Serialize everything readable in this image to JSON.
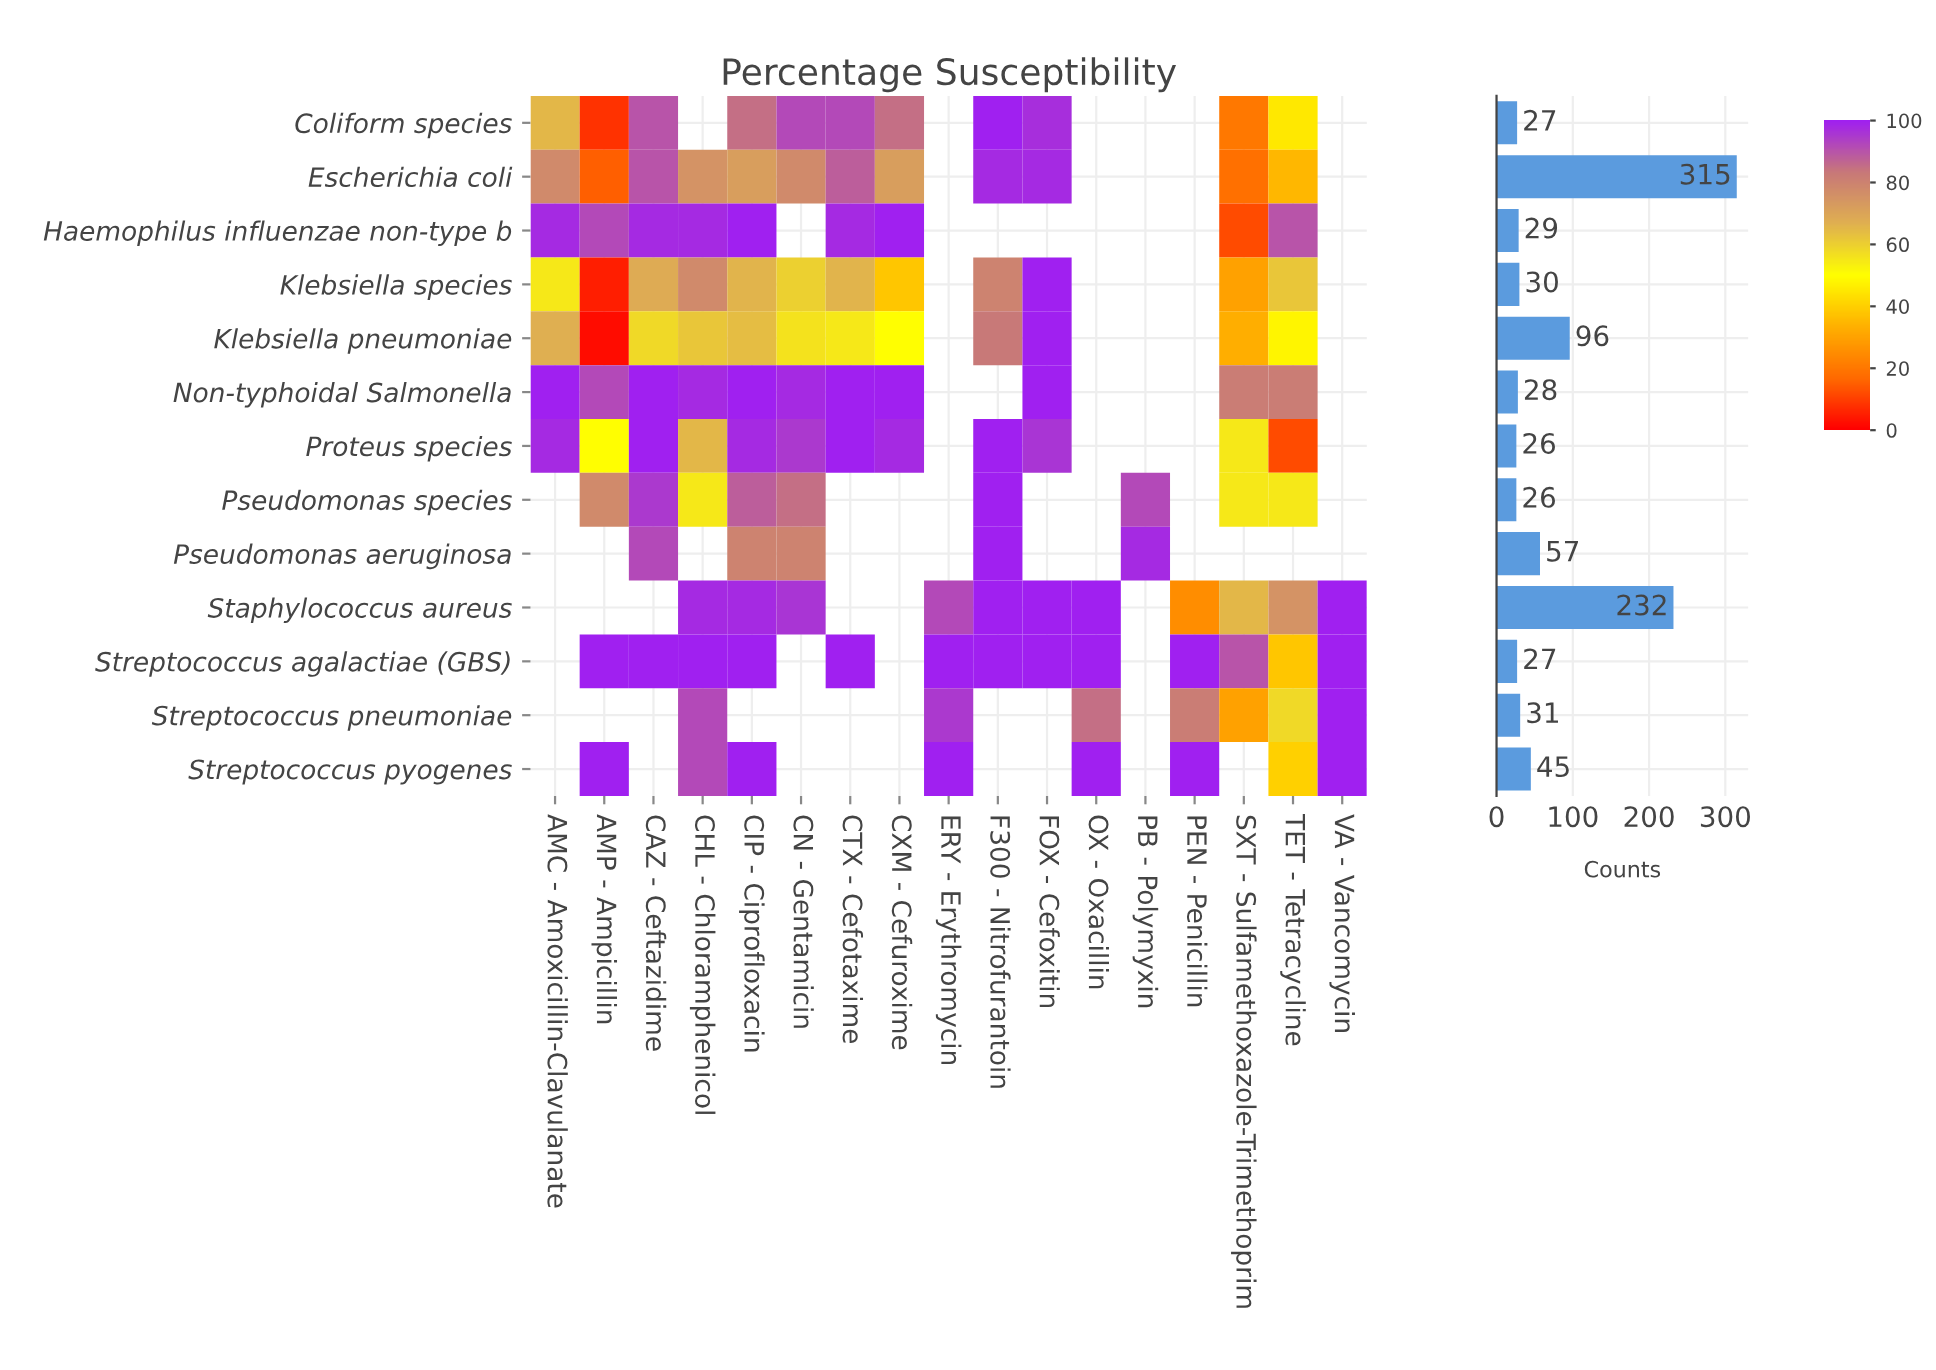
{
  "chart_data": [
    {
      "type": "heatmap",
      "title": "Percentage Susceptibility",
      "categories": [
        "AMC - Amoxicillin-Clavulanate",
        "AMP - Ampicillin",
        "CAZ - Ceftazidime",
        "CHL - Chloramphenicol",
        "CIP - Ciprofloxacin",
        "CN - Gentamicin",
        "CTX - Cefotaxime",
        "CXM - Cefuroxime",
        "ERY - Erythromycin",
        "F300 - Nitrofurantoin",
        "FOX - Cefoxitin",
        "OX - Oxacillin",
        "PB - Polymyxin",
        "PEN - Penicillin",
        "SXT - Sulfamethoxazole-Trimethoprim",
        "TET - Tetracycline",
        "VA - Vancomycin"
      ],
      "y_categories": [
        "Coliform species",
        "Escherichia coli",
        "Haemophilus influenzae non-type b",
        "Klebsiella species",
        "Klebsiella pneumoniae",
        "Non-typhoidal Salmonella",
        "Proteus species",
        "Pseudomonas species",
        "Pseudomonas aeruginosa",
        "Staphylococcus aureus",
        "Streptococcus agalactiae (GBS)",
        "Streptococcus pneumoniae",
        "Streptococcus pyogenes"
      ],
      "cells": [
        [
          65,
          8,
          90,
          null,
          85,
          92,
          92,
          85,
          null,
          100,
          97,
          null,
          null,
          null,
          20,
          45,
          null
        ],
        [
          78,
          15,
          90,
          75,
          72,
          78,
          88,
          72,
          null,
          98,
          98,
          null,
          null,
          null,
          18,
          35,
          null
        ],
        [
          98,
          92,
          98,
          98,
          100,
          null,
          98,
          100,
          null,
          null,
          null,
          null,
          null,
          null,
          12,
          90,
          null
        ],
        [
          55,
          5,
          68,
          78,
          66,
          60,
          66,
          38,
          null,
          80,
          100,
          null,
          null,
          null,
          30,
          62,
          null
        ],
        [
          67,
          2,
          58,
          62,
          64,
          56,
          55,
          50,
          null,
          83,
          100,
          null,
          null,
          null,
          33,
          48,
          null
        ],
        [
          100,
          92,
          100,
          98,
          100,
          98,
          100,
          100,
          null,
          null,
          100,
          null,
          null,
          null,
          82,
          82,
          null
        ],
        [
          98,
          50,
          100,
          65,
          98,
          95,
          100,
          98,
          null,
          100,
          96,
          null,
          null,
          null,
          55,
          12,
          null
        ],
        [
          null,
          78,
          95,
          55,
          88,
          85,
          null,
          null,
          null,
          100,
          null,
          null,
          92,
          null,
          55,
          55,
          null
        ],
        [
          null,
          null,
          92,
          null,
          80,
          80,
          null,
          null,
          null,
          100,
          null,
          null,
          98,
          null,
          null,
          null,
          null
        ],
        [
          null,
          null,
          null,
          98,
          98,
          96,
          null,
          null,
          92,
          100,
          100,
          100,
          null,
          25,
          65,
          75,
          100
        ],
        [
          null,
          100,
          100,
          100,
          100,
          null,
          100,
          null,
          100,
          100,
          100,
          100,
          null,
          100,
          90,
          38,
          100
        ],
        [
          null,
          null,
          null,
          92,
          null,
          null,
          null,
          null,
          95,
          null,
          null,
          85,
          null,
          82,
          30,
          58,
          100
        ],
        [
          null,
          100,
          null,
          92,
          100,
          null,
          null,
          null,
          100,
          null,
          null,
          100,
          null,
          100,
          null,
          40,
          100
        ]
      ],
      "colors": [
        "#ff0000",
        "#ff6a00",
        "#ffb000",
        "#ffff00",
        "#e0b050",
        "#c87878",
        "#a020f0"
      ],
      "clim": [
        0,
        100
      ],
      "cticks": [
        0,
        20,
        40,
        60,
        80,
        100
      ],
      "grid": true
    },
    {
      "type": "bar",
      "orientation": "horizontal",
      "xlabel": "Counts",
      "categories": [
        null,
        null,
        null,
        null,
        null,
        null,
        null,
        null,
        null,
        null,
        null,
        null,
        null
      ],
      "values": [
        27,
        315,
        29,
        30,
        96,
        28,
        26,
        26,
        57,
        232,
        27,
        31,
        45
      ],
      "color": "#5b9bde",
      "xlim": [
        0,
        330
      ],
      "xticks": [
        0,
        100,
        200,
        300
      ],
      "data_labels": true,
      "grid": true
    }
  ]
}
